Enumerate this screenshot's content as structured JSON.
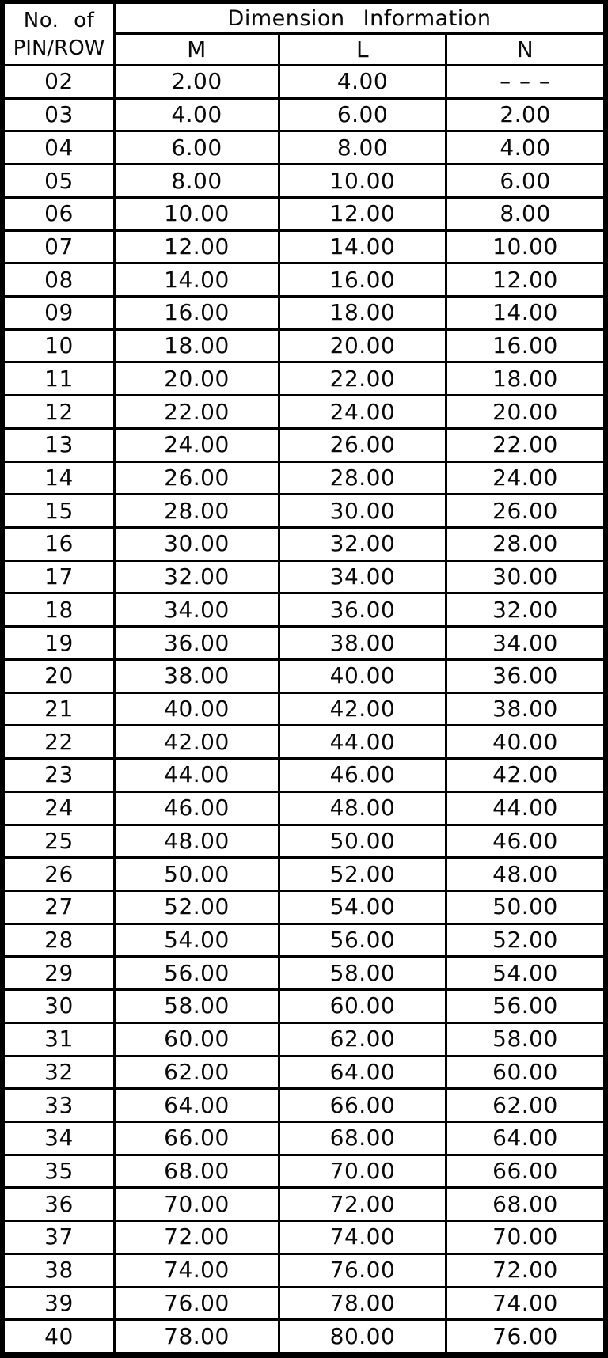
{
  "colors": {
    "line_color": "#000000",
    "cell_background": "#ffffff",
    "text_color": "#0a0a0a"
  },
  "table": {
    "header": {
      "row_label_line1": "No. of",
      "row_label_line2": "PIN/ROW",
      "group_title": "Dimension Information",
      "columns": [
        "M",
        "L",
        "N"
      ]
    },
    "rows": [
      {
        "pin": "02",
        "M": "2.00",
        "L": "4.00",
        "N": "– – –"
      },
      {
        "pin": "03",
        "M": "4.00",
        "L": "6.00",
        "N": "2.00"
      },
      {
        "pin": "04",
        "M": "6.00",
        "L": "8.00",
        "N": "4.00"
      },
      {
        "pin": "05",
        "M": "8.00",
        "L": "10.00",
        "N": "6.00"
      },
      {
        "pin": "06",
        "M": "10.00",
        "L": "12.00",
        "N": "8.00"
      },
      {
        "pin": "07",
        "M": "12.00",
        "L": "14.00",
        "N": "10.00"
      },
      {
        "pin": "08",
        "M": "14.00",
        "L": "16.00",
        "N": "12.00"
      },
      {
        "pin": "09",
        "M": "16.00",
        "L": "18.00",
        "N": "14.00"
      },
      {
        "pin": "10",
        "M": "18.00",
        "L": "20.00",
        "N": "16.00"
      },
      {
        "pin": "11",
        "M": "20.00",
        "L": "22.00",
        "N": "18.00"
      },
      {
        "pin": "12",
        "M": "22.00",
        "L": "24.00",
        "N": "20.00"
      },
      {
        "pin": "13",
        "M": "24.00",
        "L": "26.00",
        "N": "22.00"
      },
      {
        "pin": "14",
        "M": "26.00",
        "L": "28.00",
        "N": "24.00"
      },
      {
        "pin": "15",
        "M": "28.00",
        "L": "30.00",
        "N": "26.00"
      },
      {
        "pin": "16",
        "M": "30.00",
        "L": "32.00",
        "N": "28.00"
      },
      {
        "pin": "17",
        "M": "32.00",
        "L": "34.00",
        "N": "30.00"
      },
      {
        "pin": "18",
        "M": "34.00",
        "L": "36.00",
        "N": "32.00"
      },
      {
        "pin": "19",
        "M": "36.00",
        "L": "38.00",
        "N": "34.00"
      },
      {
        "pin": "20",
        "M": "38.00",
        "L": "40.00",
        "N": "36.00"
      },
      {
        "pin": "21",
        "M": "40.00",
        "L": "42.00",
        "N": "38.00"
      },
      {
        "pin": "22",
        "M": "42.00",
        "L": "44.00",
        "N": "40.00"
      },
      {
        "pin": "23",
        "M": "44.00",
        "L": "46.00",
        "N": "42.00"
      },
      {
        "pin": "24",
        "M": "46.00",
        "L": "48.00",
        "N": "44.00"
      },
      {
        "pin": "25",
        "M": "48.00",
        "L": "50.00",
        "N": "46.00"
      },
      {
        "pin": "26",
        "M": "50.00",
        "L": "52.00",
        "N": "48.00"
      },
      {
        "pin": "27",
        "M": "52.00",
        "L": "54.00",
        "N": "50.00"
      },
      {
        "pin": "28",
        "M": "54.00",
        "L": "56.00",
        "N": "52.00"
      },
      {
        "pin": "29",
        "M": "56.00",
        "L": "58.00",
        "N": "54.00"
      },
      {
        "pin": "30",
        "M": "58.00",
        "L": "60.00",
        "N": "56.00"
      },
      {
        "pin": "31",
        "M": "60.00",
        "L": "62.00",
        "N": "58.00"
      },
      {
        "pin": "32",
        "M": "62.00",
        "L": "64.00",
        "N": "60.00"
      },
      {
        "pin": "33",
        "M": "64.00",
        "L": "66.00",
        "N": "62.00"
      },
      {
        "pin": "34",
        "M": "66.00",
        "L": "68.00",
        "N": "64.00"
      },
      {
        "pin": "35",
        "M": "68.00",
        "L": "70.00",
        "N": "66.00"
      },
      {
        "pin": "36",
        "M": "70.00",
        "L": "72.00",
        "N": "68.00"
      },
      {
        "pin": "37",
        "M": "72.00",
        "L": "74.00",
        "N": "70.00"
      },
      {
        "pin": "38",
        "M": "74.00",
        "L": "76.00",
        "N": "72.00"
      },
      {
        "pin": "39",
        "M": "76.00",
        "L": "78.00",
        "N": "74.00"
      },
      {
        "pin": "40",
        "M": "78.00",
        "L": "80.00",
        "N": "76.00"
      }
    ]
  }
}
